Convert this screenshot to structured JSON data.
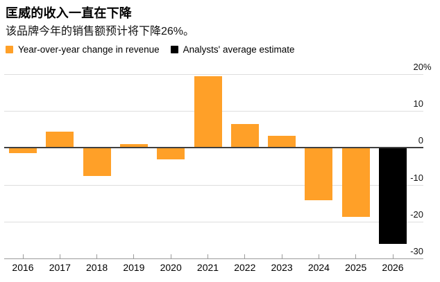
{
  "chart_data": {
    "type": "bar",
    "title": "匡威的收入一直在下降",
    "subtitle": "该品牌今年的销售额预计将下降26%。",
    "categories": [
      "2016",
      "2017",
      "2018",
      "2019",
      "2020",
      "2021",
      "2022",
      "2023",
      "2024",
      "2025",
      "2026"
    ],
    "series": [
      {
        "name": "Year-over-year change in revenue",
        "color": "#FFA028",
        "values": [
          -1.4,
          4.4,
          -7.6,
          1.1,
          -3.1,
          19.4,
          6.4,
          3.3,
          -14.2,
          -18.7,
          null
        ]
      },
      {
        "name": "Analysts' average estimate",
        "color": "#000000",
        "values": [
          null,
          null,
          null,
          null,
          null,
          null,
          null,
          null,
          null,
          null,
          -26
        ]
      }
    ],
    "xlabel": "",
    "ylabel": "",
    "ylim": [
      -30,
      20
    ],
    "yticks": [
      {
        "value": 20,
        "label": "20%"
      },
      {
        "value": 10,
        "label": "10"
      },
      {
        "value": 0,
        "label": "0"
      },
      {
        "value": -10,
        "label": "-10"
      },
      {
        "value": -20,
        "label": "-20"
      },
      {
        "value": -30,
        "label": "-30"
      }
    ],
    "legend_position": "top-left",
    "grid": true,
    "colors": {
      "grid": "#DEDEDE",
      "zero_line": "#3F3F3F",
      "axis": "#9B9B9B",
      "text": "#000000",
      "background": "#FFFFFF"
    }
  }
}
